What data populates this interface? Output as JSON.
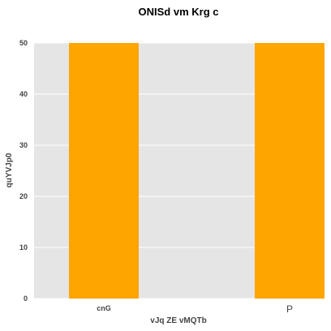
{
  "chart_data": {
    "type": "bar",
    "title": "ONISd vm Krg c",
    "xlabel": "vJq  ZE vMQTb",
    "ylabel": "quYVJp0",
    "categories": [
      "cnG",
      "P"
    ],
    "series": [
      {
        "values": [
          50,
          50
        ]
      }
    ],
    "ylim": [
      0,
      50
    ],
    "yticks": [
      0,
      10,
      20,
      30,
      40,
      50
    ],
    "grid": true,
    "colors": {
      "bar": "#ffa500",
      "plot_background": "#e5e5e5",
      "grid": "#ffffff"
    }
  }
}
